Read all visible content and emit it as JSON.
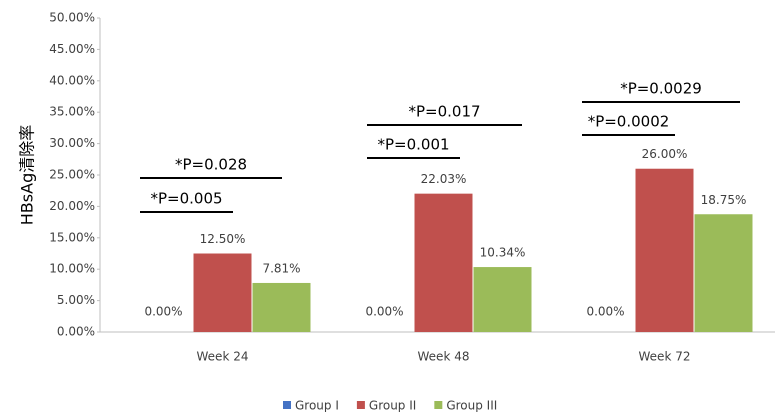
{
  "chart_data": {
    "type": "bar",
    "y_label": "HBsAg清除率",
    "categories": [
      "Week 24",
      "Week 48",
      "Week 72"
    ],
    "series": [
      {
        "name": "Group I",
        "color": "#4472c4",
        "values": [
          0,
          0,
          0
        ],
        "value_labels": [
          "0.00%",
          "0.00%",
          "0.00%"
        ]
      },
      {
        "name": "Group II",
        "color": "#c0504d",
        "values": [
          12.5,
          22.03,
          26
        ],
        "value_labels": [
          "12.50%",
          "22.03%",
          "26.00%"
        ]
      },
      {
        "name": "Group III",
        "color": "#9bbb59",
        "values": [
          7.81,
          10.34,
          18.75
        ],
        "value_labels": [
          "7.81%",
          "10.34%",
          "18.75%"
        ]
      }
    ],
    "ylim": [
      0,
      50
    ],
    "yticks": [
      {
        "value": 0,
        "label": "0.00%"
      },
      {
        "value": 5,
        "label": "5.00%"
      },
      {
        "value": 10,
        "label": "10.00%"
      },
      {
        "value": 15,
        "label": "15.00%"
      },
      {
        "value": 20,
        "label": "20.00%"
      },
      {
        "value": 25,
        "label": "25.00%"
      },
      {
        "value": 30,
        "label": "30.00%"
      },
      {
        "value": 35,
        "label": "35.00%"
      },
      {
        "value": 40,
        "label": "40.00%"
      },
      {
        "value": 45,
        "label": "45.00%"
      },
      {
        "value": 50,
        "label": "50.00%"
      }
    ],
    "grid": false,
    "legend": "bottom",
    "annotations": [
      "*P=0.005",
      "*P=0.028",
      "*P=0.001",
      "*P=0.017",
      "*P=0.0002",
      "*P=0.0029"
    ]
  }
}
